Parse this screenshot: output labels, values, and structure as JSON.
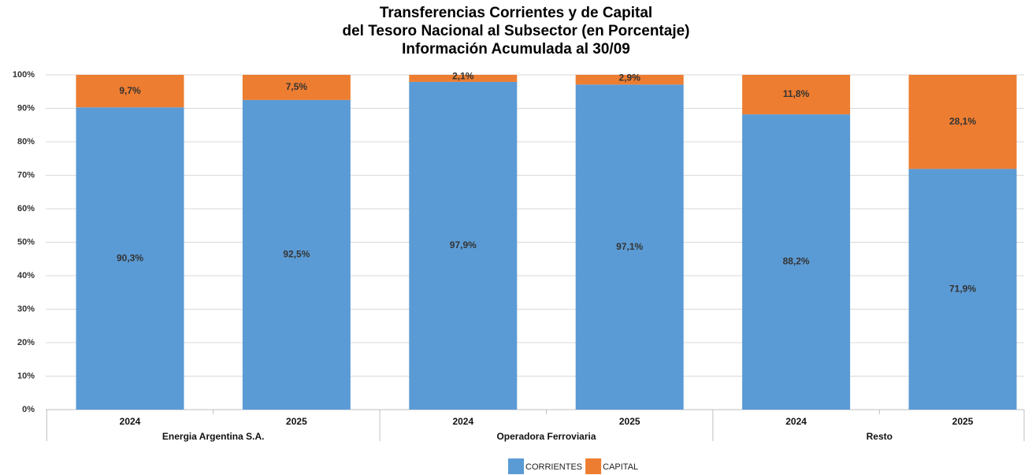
{
  "chart_data": {
    "type": "stacked_bar",
    "title": [
      "Transferencias Corrientes y de Capital",
      "del Tesoro Nacional al Subsector (en Porcentaje)",
      "Información Acumulada al 30/09"
    ],
    "categories": [
      "2024",
      "2025",
      "2024",
      "2025",
      "2024",
      "2025"
    ],
    "groups": [
      "Energia Argentina S.A.",
      "Operadora Ferroviaria",
      "Resto"
    ],
    "series": [
      {
        "name": "CORRIENTES",
        "color": "#5b9bd5",
        "values": [
          90.3,
          92.5,
          97.9,
          97.1,
          88.2,
          71.9
        ],
        "value_labels": [
          "90,3%",
          "92,5%",
          "97,9%",
          "97,1%",
          "88,2%",
          "71,9%"
        ]
      },
      {
        "name": "CAPITAL",
        "color": "#ed7d31",
        "values": [
          9.7,
          7.5,
          2.1,
          2.9,
          11.8,
          28.1
        ],
        "value_labels": [
          "9,7%",
          "7,5%",
          "2,1%",
          "2,9%",
          "11,8%",
          "28,1%"
        ]
      }
    ],
    "ylim": [
      0,
      100
    ],
    "yticks": [
      {
        "value": 0,
        "label": "0%"
      },
      {
        "value": 10,
        "label": "10%"
      },
      {
        "value": 20,
        "label": "20%"
      },
      {
        "value": 30,
        "label": "30%"
      },
      {
        "value": 40,
        "label": "40%"
      },
      {
        "value": 50,
        "label": "50%"
      },
      {
        "value": 60,
        "label": "60%"
      },
      {
        "value": 70,
        "label": "70%"
      },
      {
        "value": 80,
        "label": "80%"
      },
      {
        "value": 90,
        "label": "90%"
      },
      {
        "value": 100,
        "label": "100%"
      }
    ],
    "grid": true,
    "legend": "bottom"
  }
}
